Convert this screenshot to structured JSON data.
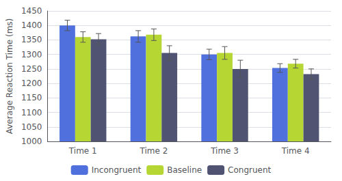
{
  "chart_data": {
    "type": "bar",
    "categories": [
      "Time 1",
      "Time 2",
      "Time 3",
      "Time 4"
    ],
    "series": [
      {
        "name": "Incongruent",
        "values": [
          1400,
          1362,
          1300,
          1253
        ],
        "errors": [
          18,
          20,
          18,
          15
        ]
      },
      {
        "name": "Baseline",
        "values": [
          1360,
          1368,
          1305,
          1268
        ],
        "errors": [
          18,
          20,
          22,
          15
        ]
      },
      {
        "name": "Congruent",
        "values": [
          1352,
          1305,
          1250,
          1232
        ],
        "errors": [
          20,
          25,
          30,
          18
        ]
      }
    ],
    "ylabel": "Average Reaction Time (ms)",
    "ylim": [
      1000,
      1450
    ],
    "yticks": [
      1000,
      1050,
      1100,
      1150,
      1200,
      1250,
      1300,
      1350,
      1400,
      1450
    ],
    "grid": true,
    "legend": "bottom"
  }
}
